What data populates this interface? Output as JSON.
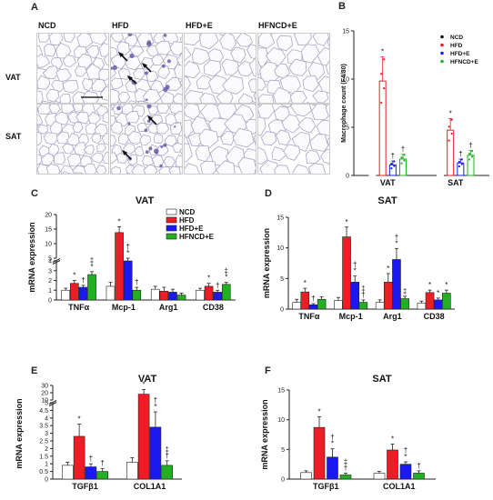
{
  "panelA": {
    "letter": "A",
    "columns": [
      "NCD",
      "HFD",
      "HFD+E",
      "HFNCD+E"
    ],
    "rows": [
      "VAT",
      "SAT"
    ]
  },
  "colors": {
    "NCD": "#ffffff",
    "HFD": "#ee1c24",
    "HFD+E": "#1a1aee",
    "HFNCD+E": "#22b022",
    "axis": "#222222",
    "stain": "#6b5ba8"
  },
  "chart_data": [
    {
      "panel": "B",
      "type": "bar",
      "title": "",
      "xlabel": "",
      "ylabel": "Macrophage count (F4/80)",
      "categories": [
        "VAT",
        "SAT"
      ],
      "ylim": [
        0,
        15
      ],
      "yticks": [
        0,
        5,
        10,
        15
      ],
      "legend_position": "top-right",
      "series": [
        {
          "name": "NCD",
          "values": [
            0.8,
            2.2
          ],
          "err": [
            0.3,
            0.8
          ],
          "marks": [
            "",
            ""
          ]
        },
        {
          "name": "HFD",
          "values": [
            9.8,
            4.7
          ],
          "err": [
            2.5,
            1.2
          ],
          "marks": [
            "*",
            "*"
          ]
        },
        {
          "name": "HFD+E",
          "values": [
            1.1,
            1.3
          ],
          "err": [
            0.4,
            0.4
          ],
          "marks": [
            "†",
            "†"
          ]
        },
        {
          "name": "HFNCD+E",
          "values": [
            1.7,
            2.1
          ],
          "err": [
            0.5,
            0.5
          ],
          "marks": [
            "†",
            "†"
          ]
        }
      ]
    },
    {
      "panel": "C",
      "type": "bar",
      "title": "VAT",
      "ylabel": "mRNA expression",
      "categories": [
        "TNFα",
        "Mcp-1",
        "Arg1",
        "CD38"
      ],
      "broken_axis": true,
      "yticks_lower": [
        0,
        1,
        2,
        3,
        4
      ],
      "yticks_upper": [
        5,
        10,
        15,
        20
      ],
      "legend_position": "top-right",
      "series": [
        {
          "name": "NCD",
          "values": [
            1.0,
            1.4,
            1.1,
            1.0
          ],
          "err": [
            0.2,
            0.4,
            0.3,
            0.2
          ],
          "marks": [
            "",
            "",
            "",
            ""
          ]
        },
        {
          "name": "HFD",
          "values": [
            1.7,
            13.8,
            0.9,
            1.4
          ],
          "err": [
            0.3,
            2.0,
            0.4,
            0.3
          ],
          "marks": [
            "*",
            "*",
            "",
            "*"
          ]
        },
        {
          "name": "HFD+E",
          "values": [
            1.3,
            4.0,
            0.8,
            0.8
          ],
          "err": [
            0.2,
            1.0,
            0.3,
            0.2
          ],
          "marks": [
            "†",
            "†*",
            "",
            "†"
          ]
        },
        {
          "name": "HFNCD+E",
          "values": [
            2.6,
            1.0,
            0.5,
            1.6
          ],
          "err": [
            0.3,
            0.3,
            0.2,
            0.2
          ],
          "marks": [
            "‡*",
            "†",
            "",
            "‡*"
          ]
        }
      ]
    },
    {
      "panel": "D",
      "type": "bar",
      "title": "SAT",
      "ylabel": "mRNA expression",
      "categories": [
        "TNFα",
        "Mcp-1",
        "Arg1",
        "CD38"
      ],
      "ylim": [
        0,
        15
      ],
      "yticks": [
        0,
        5,
        10,
        15
      ],
      "series": [
        {
          "name": "NCD",
          "values": [
            1.1,
            1.4,
            1.1,
            1.0
          ],
          "err": [
            0.5,
            0.5,
            0.4,
            0.3
          ],
          "marks": [
            "",
            "",
            "",
            ""
          ]
        },
        {
          "name": "HFD",
          "values": [
            2.8,
            11.8,
            4.4,
            2.7
          ],
          "err": [
            0.6,
            1.6,
            1.4,
            0.4
          ],
          "marks": [
            "*",
            "*",
            "*",
            "*"
          ]
        },
        {
          "name": "HFD+E",
          "values": [
            0.7,
            4.4,
            8.1,
            1.5
          ],
          "err": [
            0.2,
            1.0,
            1.8,
            0.3
          ],
          "marks": [
            "†",
            "†*",
            "†*",
            "*"
          ]
        },
        {
          "name": "HFNCD+E",
          "values": [
            1.6,
            1.1,
            1.7,
            2.6
          ],
          "err": [
            0.4,
            0.4,
            0.4,
            0.5
          ],
          "marks": [
            "",
            "‡†",
            "‡",
            "*"
          ]
        }
      ]
    },
    {
      "panel": "E",
      "type": "bar",
      "title": "VAT",
      "ylabel": "mRNA expression",
      "categories": [
        "TGFβ1",
        "COL1A1"
      ],
      "broken_axis": true,
      "yticks_lower": [
        0,
        0.5,
        1,
        1.5,
        2,
        2.5,
        3,
        3.5,
        4,
        4.5,
        5
      ],
      "yticks_upper": [
        10,
        20,
        30
      ],
      "series": [
        {
          "name": "NCD",
          "values": [
            0.9,
            1.1
          ],
          "err": [
            0.2,
            0.3
          ],
          "marks": [
            "",
            ""
          ]
        },
        {
          "name": "HFD",
          "values": [
            2.8,
            18.0
          ],
          "err": [
            0.8,
            6.5
          ],
          "marks": [
            "*",
            "*"
          ]
        },
        {
          "name": "HFD+E",
          "values": [
            0.8,
            3.4
          ],
          "err": [
            0.2,
            1.0
          ],
          "marks": [
            "†",
            "†*"
          ]
        },
        {
          "name": "HFNCD+E",
          "values": [
            0.5,
            0.9
          ],
          "err": [
            0.2,
            0.3
          ],
          "marks": [
            "†",
            "‡†"
          ]
        }
      ]
    },
    {
      "panel": "F",
      "type": "bar",
      "title": "SAT",
      "ylabel": "mRNA expression",
      "categories": [
        "TGFβ1",
        "COL1A1"
      ],
      "ylim": [
        0,
        15
      ],
      "yticks": [
        0,
        5,
        10,
        15
      ],
      "series": [
        {
          "name": "NCD",
          "values": [
            1.1,
            1.0
          ],
          "err": [
            0.3,
            0.3
          ],
          "marks": [
            "",
            ""
          ]
        },
        {
          "name": "HFD",
          "values": [
            8.7,
            4.9
          ],
          "err": [
            1.8,
            1.0
          ],
          "marks": [
            "*",
            "*"
          ]
        },
        {
          "name": "HFD+E",
          "values": [
            3.7,
            2.5
          ],
          "err": [
            1.4,
            0.4
          ],
          "marks": [
            "†*",
            "†*"
          ]
        },
        {
          "name": "HFNCD+E",
          "values": [
            0.7,
            1.0
          ],
          "err": [
            0.3,
            0.4
          ],
          "marks": [
            "‡†",
            "†"
          ]
        }
      ]
    }
  ]
}
